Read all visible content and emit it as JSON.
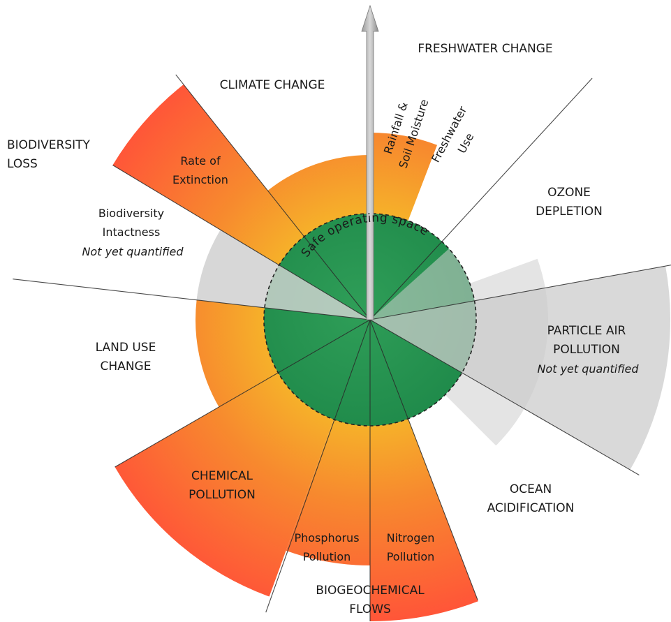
{
  "safe_space_label": "Safe operating space",
  "labels": [
    {
      "lines": [
        "CLIMATE CHANGE"
      ]
    },
    {
      "lines": [
        "FRESHWATER CHANGE"
      ]
    },
    {
      "lines": [
        "BIODIVERSITY",
        "LOSS"
      ]
    },
    {
      "lines": [
        "Rate of",
        "Extinction"
      ]
    },
    {
      "lines": [
        "Biodiversity",
        "Intactness"
      ],
      "note": "Not yet quantified"
    },
    {
      "lines": [
        "OZONE",
        "DEPLETION"
      ]
    },
    {
      "lines": [
        "PARTICLE AIR",
        "POLLUTION"
      ],
      "note": "Not yet quantified"
    },
    {
      "lines": [
        "LAND USE",
        "CHANGE"
      ]
    },
    {
      "lines": [
        "CHEMICAL",
        "POLLUTION"
      ]
    },
    {
      "lines": [
        "OCEAN",
        "ACIDIFICATION"
      ]
    },
    {
      "lines": [
        "Phosphorus",
        "Pollution"
      ]
    },
    {
      "lines": [
        "Nitrogen",
        "Pollution"
      ]
    },
    {
      "lines": [
        "BIOGEOCHEMICAL",
        "FLOWS"
      ]
    },
    {
      "lines": [
        "Rainfall &",
        "Soil Moisture"
      ]
    },
    {
      "lines": [
        "Freshwater",
        "Use"
      ]
    }
  ]
}
